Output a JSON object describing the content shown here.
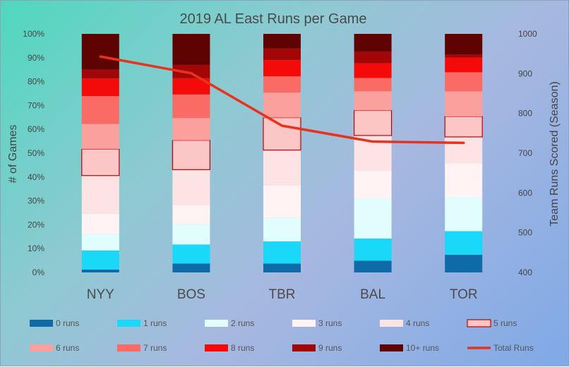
{
  "chart_data": {
    "type": "bar",
    "stacked": true,
    "title": "2019 AL East Runs per Game",
    "ylabel": "# of Games",
    "y2label": "Team Runs Scored (Season)",
    "ylim": [
      0,
      100
    ],
    "y2lim": [
      400,
      1000
    ],
    "yticks": [
      "0%",
      "10%",
      "20%",
      "30%",
      "40%",
      "50%",
      "60%",
      "70%",
      "80%",
      "90%",
      "100%"
    ],
    "y2ticks": [
      "400",
      "500",
      "600",
      "700",
      "800",
      "900",
      "1000"
    ],
    "categories": [
      "NYY",
      "BOS",
      "TBR",
      "BAL",
      "TOR"
    ],
    "series": [
      {
        "name": "0 runs",
        "color": "#0f6aa8",
        "values": [
          1.2,
          3.7,
          3.7,
          4.9,
          7.4
        ]
      },
      {
        "name": "1 runs",
        "color": "#1ad8f7",
        "values": [
          8.0,
          8.0,
          9.3,
          9.3,
          9.9
        ]
      },
      {
        "name": "2 runs",
        "color": "#e2fdfd",
        "values": [
          6.8,
          8.6,
          9.9,
          16.7,
          14.2
        ]
      },
      {
        "name": "3 runs",
        "color": "#fff3f3",
        "values": [
          8.6,
          8.0,
          13.6,
          11.7,
          14.2
        ]
      },
      {
        "name": "4 runs",
        "color": "#fde3e3",
        "values": [
          16.0,
          14.8,
          14.8,
          14.8,
          11.1
        ]
      },
      {
        "name": "5 runs",
        "color": "#fdc6c6",
        "border": "#c00000",
        "values": [
          11.1,
          12.3,
          13.6,
          10.5,
          8.6
        ]
      },
      {
        "name": "6 runs",
        "color": "#fba09c",
        "values": [
          10.5,
          9.3,
          10.5,
          8.0,
          10.5
        ]
      },
      {
        "name": "7 runs",
        "color": "#fa6b66",
        "values": [
          11.7,
          9.9,
          6.8,
          5.6,
          8.0
        ]
      },
      {
        "name": "8 runs",
        "color": "#f50a0a",
        "values": [
          7.4,
          6.8,
          6.8,
          6.2,
          6.2
        ]
      },
      {
        "name": "9 runs",
        "color": "#a30606",
        "values": [
          3.7,
          5.6,
          4.9,
          4.9,
          1.2
        ]
      },
      {
        "name": "10+ runs",
        "color": "#5e0202",
        "values": [
          15.0,
          13.0,
          6.1,
          7.4,
          8.7
        ]
      }
    ],
    "line_series": {
      "name": "Total Runs",
      "color": "#e8321b",
      "axis": "right",
      "values": [
        943,
        901,
        769,
        729,
        726
      ]
    },
    "legend_position": "bottom"
  }
}
